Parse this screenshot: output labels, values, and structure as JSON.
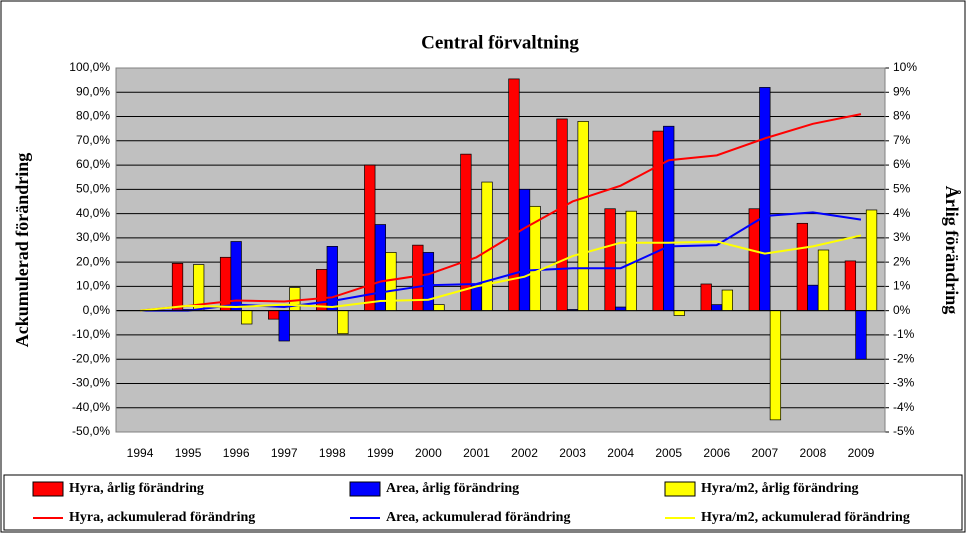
{
  "chart_data": {
    "type": "bar",
    "title": "Central förvaltning",
    "y_label": "Ackumulerad förändring",
    "y2_label": "Årlig förändring",
    "categories": [
      "1994",
      "1995",
      "1996",
      "1997",
      "1998",
      "1999",
      "2000",
      "2001",
      "2002",
      "2003",
      "2004",
      "2005",
      "2006",
      "2007",
      "2008",
      "2009"
    ],
    "ylim": [
      -50,
      100
    ],
    "yticks": [
      {
        "value": -50,
        "label": "-50,0%"
      },
      {
        "value": -40,
        "label": "-40,0%"
      },
      {
        "value": -30,
        "label": "-30,0%"
      },
      {
        "value": -20,
        "label": "-20,0%"
      },
      {
        "value": -10,
        "label": "-10,0%"
      },
      {
        "value": 0,
        "label": "0,0%"
      },
      {
        "value": 10,
        "label": "10,0%"
      },
      {
        "value": 20,
        "label": "20,0%"
      },
      {
        "value": 30,
        "label": "30,0%"
      },
      {
        "value": 40,
        "label": "40,0%"
      },
      {
        "value": 50,
        "label": "50,0%"
      },
      {
        "value": 60,
        "label": "60,0%"
      },
      {
        "value": 70,
        "label": "70,0%"
      },
      {
        "value": 80,
        "label": "80,0%"
      },
      {
        "value": 90,
        "label": "90,0%"
      },
      {
        "value": 100,
        "label": "100,0%"
      }
    ],
    "y2lim": [
      -5,
      10
    ],
    "y2ticks": [
      {
        "value": -5,
        "label": "-5%"
      },
      {
        "value": -4,
        "label": "-4%"
      },
      {
        "value": -3,
        "label": "-3%"
      },
      {
        "value": -2,
        "label": "-2%"
      },
      {
        "value": -1,
        "label": "-1%"
      },
      {
        "value": 0,
        "label": "0%"
      },
      {
        "value": 1,
        "label": "1%"
      },
      {
        "value": 2,
        "label": "2%"
      },
      {
        "value": 3,
        "label": "3%"
      },
      {
        "value": 4,
        "label": "4%"
      },
      {
        "value": 5,
        "label": "5%"
      },
      {
        "value": 6,
        "label": "6%"
      },
      {
        "value": 7,
        "label": "7%"
      },
      {
        "value": 8,
        "label": "8%"
      },
      {
        "value": 9,
        "label": "9%"
      },
      {
        "value": 10,
        "label": "10%"
      }
    ],
    "grid": true,
    "series": [
      {
        "name": "Hyra, årlig förändring",
        "type": "bar",
        "axis": "y2",
        "color": "#ff0000",
        "values": [
          null,
          1.95,
          2.2,
          -0.35,
          1.7,
          6.0,
          2.7,
          6.45,
          9.55,
          7.9,
          4.2,
          7.4,
          1.1,
          4.2,
          3.6,
          2.05
        ]
      },
      {
        "name": "Area, årlig förändring",
        "type": "bar",
        "axis": "y2",
        "color": "#0000ff",
        "values": [
          null,
          0.05,
          2.85,
          -1.25,
          2.65,
          3.55,
          2.4,
          1.1,
          5.0,
          0.05,
          0.15,
          7.6,
          0.25,
          9.2,
          1.05,
          -2.0
        ]
      },
      {
        "name": "Hyra/m2, årlig förändring",
        "type": "bar",
        "axis": "y2",
        "color": "#ffff00",
        "values": [
          null,
          1.9,
          -0.55,
          0.95,
          -0.95,
          2.4,
          0.25,
          5.3,
          4.3,
          7.8,
          4.1,
          -0.2,
          0.85,
          -4.5,
          2.5,
          4.15
        ]
      },
      {
        "name": "Hyra, ackumulerad förändring",
        "type": "line",
        "color": "#ff0000",
        "values": [
          0,
          2,
          4.2,
          3.8,
          5.5,
          12,
          15,
          22,
          34,
          45,
          51.5,
          62,
          64,
          71,
          77,
          81
        ]
      },
      {
        "name": "Area, ackumulerad förändring",
        "type": "line",
        "color": "#0000ff",
        "values": [
          0,
          0,
          2.5,
          1.5,
          4,
          7.5,
          10.5,
          11,
          16.5,
          17.5,
          17.5,
          26.5,
          27,
          39,
          40.5,
          37.5
        ]
      },
      {
        "name": "Hyra/m2, ackumulerad förändring",
        "type": "line",
        "color": "#ffff00",
        "values": [
          0,
          2,
          1.5,
          2.5,
          1.5,
          4,
          4.5,
          10,
          14,
          22.5,
          28,
          28,
          28.5,
          23.5,
          26.5,
          31
        ]
      }
    ]
  }
}
